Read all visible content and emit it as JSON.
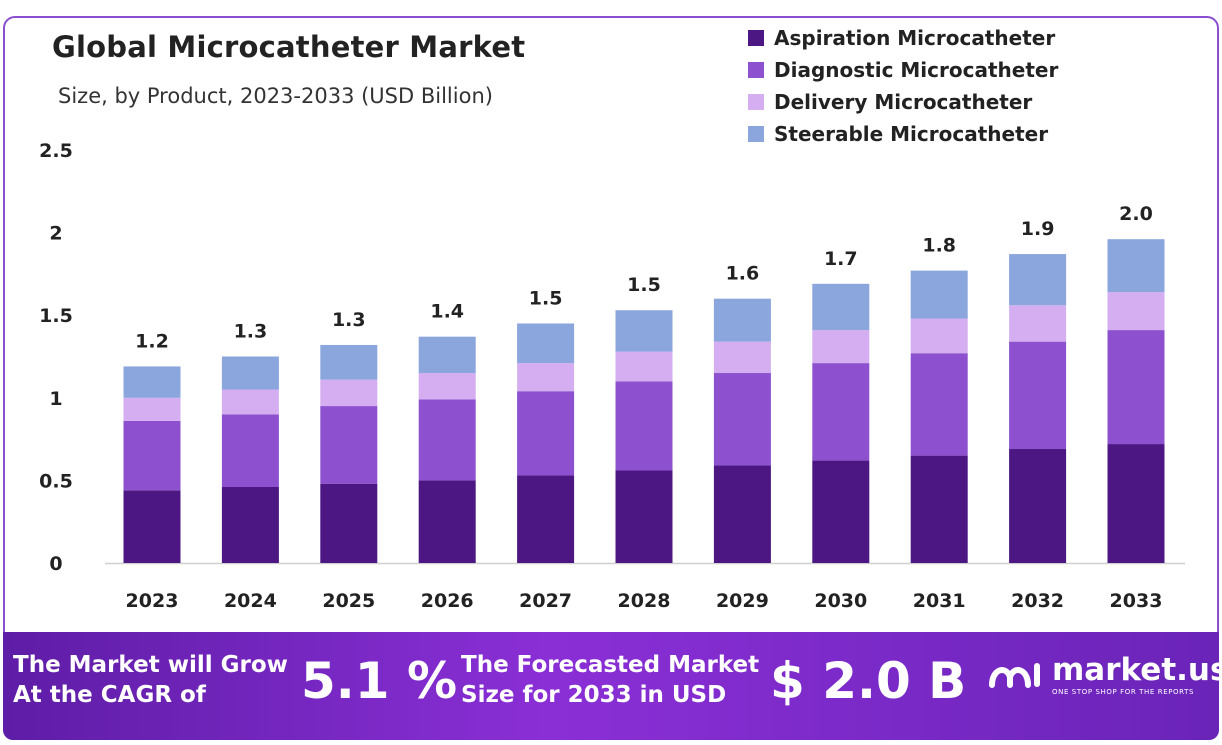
{
  "header": {
    "title": "Global Microcatheter Market",
    "subtitle": "Size, by Product, 2023-2033 (USD Billion)"
  },
  "colors": {
    "aspiration": "#4c1782",
    "diagnostic": "#8d51cf",
    "delivery": "#d4aef0",
    "steerable": "#8aa6dc",
    "border": "#8a4fd0"
  },
  "chart_data": {
    "type": "bar",
    "stacked": true,
    "categories": [
      "2023",
      "2024",
      "2025",
      "2026",
      "2027",
      "2028",
      "2029",
      "2030",
      "2031",
      "2032",
      "2033"
    ],
    "series": [
      {
        "name": "Aspiration Microcatheter",
        "values": [
          0.44,
          0.46,
          0.48,
          0.5,
          0.53,
          0.56,
          0.59,
          0.62,
          0.65,
          0.69,
          0.72
        ]
      },
      {
        "name": "Diagnostic Microcatheter",
        "values": [
          0.42,
          0.44,
          0.47,
          0.49,
          0.51,
          0.54,
          0.56,
          0.59,
          0.62,
          0.65,
          0.69
        ]
      },
      {
        "name": "Delivery Microcatheter",
        "values": [
          0.14,
          0.15,
          0.16,
          0.16,
          0.17,
          0.18,
          0.19,
          0.2,
          0.21,
          0.22,
          0.23
        ]
      },
      {
        "name": "Steerable Microcatheter",
        "values": [
          0.19,
          0.2,
          0.21,
          0.22,
          0.24,
          0.25,
          0.26,
          0.28,
          0.29,
          0.31,
          0.32
        ]
      }
    ],
    "totals_labels": [
      "1.2",
      "1.3",
      "1.3",
      "1.4",
      "1.5",
      "1.5",
      "1.6",
      "1.7",
      "1.8",
      "1.9",
      "2.0"
    ],
    "yticks": [
      "0",
      "0.5",
      "1",
      "1.5",
      "2",
      "2.5"
    ],
    "ylim": [
      0,
      2.5
    ],
    "grid": false,
    "legend_position": "top-right"
  },
  "footer": {
    "cagr_text_line1": "The Market will Grow",
    "cagr_text_line2": "At the CAGR of",
    "cagr_value": "5.1 %",
    "forecast_text_line1": "The Forecasted Market",
    "forecast_text_line2": "Size for 2033 in USD",
    "forecast_value": "$ 2.0 B",
    "brand_name": "market.us",
    "brand_tagline": "ONE STOP SHOP FOR THE REPORTS"
  }
}
